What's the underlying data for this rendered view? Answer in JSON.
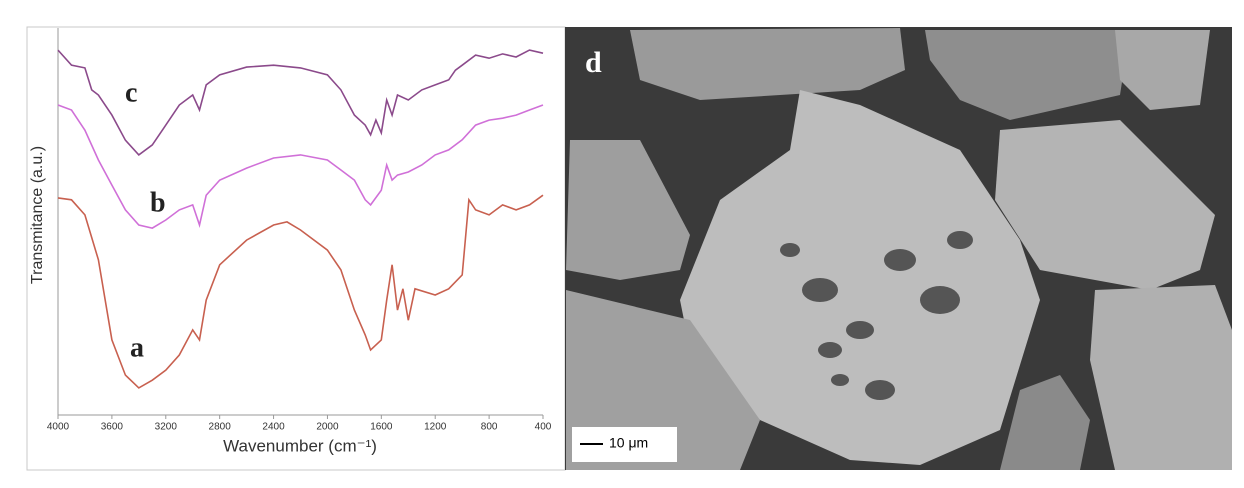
{
  "chart_data": {
    "type": "line",
    "xlabel": "Wavenumber (cm⁻¹)",
    "ylabel": "Transmitance (a.u.)",
    "xlim": [
      4000,
      400
    ],
    "ylim": [
      0,
      100
    ],
    "xticks": [
      4000,
      3600,
      3200,
      2800,
      2400,
      2000,
      1600,
      1200,
      800,
      400
    ],
    "series": [
      {
        "name": "a",
        "color": "#c8604f",
        "x": [
          4000,
          3900,
          3800,
          3700,
          3600,
          3500,
          3400,
          3300,
          3200,
          3100,
          3000,
          2950,
          2900,
          2800,
          2600,
          2400,
          2300,
          2200,
          2000,
          1900,
          1800,
          1720,
          1680,
          1600,
          1560,
          1520,
          1480,
          1440,
          1400,
          1350,
          1200,
          1100,
          1000,
          950,
          900,
          800,
          700,
          600,
          500,
          400
        ],
        "values": [
          56.1,
          55.6,
          51.7,
          40.1,
          19.4,
          10.3,
          7,
          9,
          11.6,
          15.5,
          22,
          19.4,
          29.7,
          38.8,
          45.2,
          49.1,
          49.9,
          47.8,
          42.6,
          37.5,
          27.1,
          20.7,
          16.8,
          19.4,
          29.7,
          38.8,
          27.1,
          32.6,
          24.5,
          32.6,
          31,
          32.6,
          36.2,
          55.6,
          53,
          51.7,
          54.3,
          53,
          54.3,
          56.8
        ]
      },
      {
        "name": "b",
        "color": "#d070d8",
        "x": [
          4000,
          3900,
          3800,
          3700,
          3600,
          3500,
          3400,
          3300,
          3200,
          3100,
          3000,
          2950,
          2900,
          2800,
          2600,
          2400,
          2200,
          2000,
          1900,
          1800,
          1720,
          1680,
          1600,
          1560,
          1520,
          1480,
          1400,
          1300,
          1200,
          1100,
          1000,
          900,
          800,
          700,
          600,
          500,
          400
        ],
        "values": [
          80.1,
          78.8,
          73.6,
          65.9,
          59.4,
          53,
          49.1,
          48.3,
          50.4,
          53,
          54.3,
          49.1,
          56.8,
          60.7,
          63.8,
          66.4,
          67.2,
          65.9,
          63.3,
          60.7,
          55.6,
          54.3,
          58.1,
          64.6,
          60.7,
          62,
          62.8,
          64.6,
          67.2,
          68.5,
          71.1,
          74.9,
          76.2,
          76.7,
          77.5,
          78.8,
          80.1
        ]
      },
      {
        "name": "c",
        "color": "#8b4a8b",
        "x": [
          4000,
          3900,
          3800,
          3750,
          3700,
          3600,
          3500,
          3400,
          3300,
          3200,
          3100,
          3000,
          2950,
          2900,
          2800,
          2600,
          2400,
          2200,
          2000,
          1900,
          1800,
          1720,
          1680,
          1640,
          1600,
          1560,
          1520,
          1480,
          1400,
          1300,
          1200,
          1100,
          1050,
          1000,
          900,
          800,
          700,
          600,
          500,
          400
        ],
        "values": [
          94.3,
          90.4,
          89.7,
          84,
          82.7,
          77.5,
          71,
          67.2,
          69.8,
          74.9,
          80.1,
          82.7,
          78.8,
          85.3,
          87.9,
          89.9,
          90.4,
          89.7,
          87.9,
          84,
          77.5,
          74.9,
          72.4,
          76.2,
          72.9,
          81.4,
          77.5,
          82.7,
          81.4,
          84,
          85.3,
          86.6,
          89.1,
          90.4,
          93,
          92.2,
          93.3,
          92.5,
          94.3,
          93.5
        ]
      }
    ]
  },
  "sem_image": {
    "label": "d",
    "scale_bar": "10 μm"
  }
}
